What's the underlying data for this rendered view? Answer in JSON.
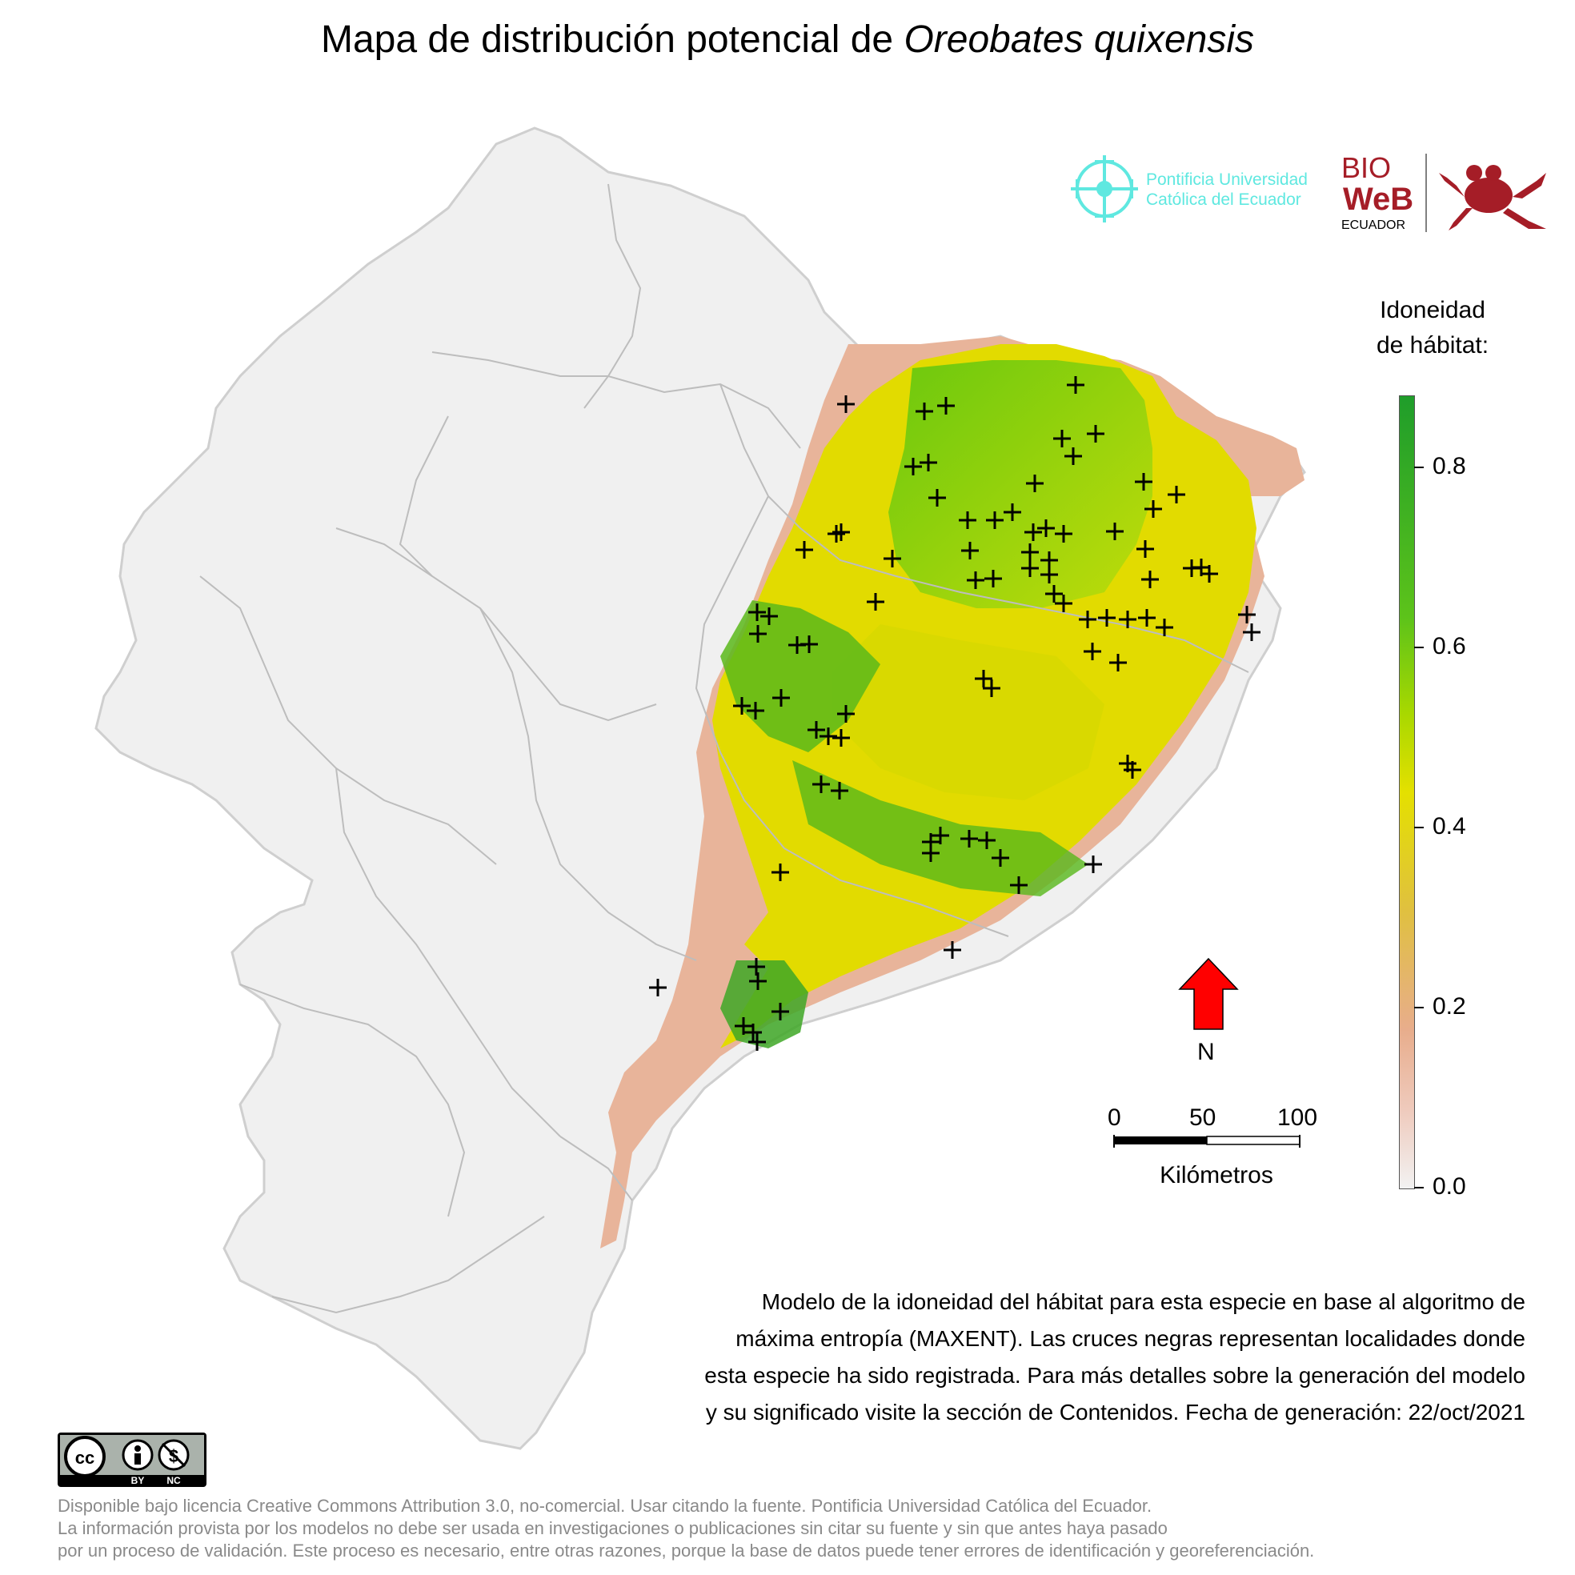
{
  "title": {
    "prefix": "Mapa de distribución potencial de",
    "species": "Oreobates quixensis"
  },
  "logos": {
    "puce_line1": "Pontificia Universidad",
    "puce_line2": "Católica del Ecuador",
    "bioweb_top": "BIO",
    "bioweb_mid": "WeB",
    "bioweb_bottom": "ECUADOR"
  },
  "legend": {
    "title_line1": "Idoneidad",
    "title_line2": "de hábitat:",
    "ticks": [
      "0.8",
      "0.6",
      "0.4",
      "0.2",
      "0.0"
    ],
    "tick_values": [
      0.8,
      0.6,
      0.4,
      0.2,
      0.0
    ],
    "max_value": 0.88,
    "colors": {
      "low": "#f2f2f2",
      "pink": "#e8ad8c",
      "yellow": "#e4e000",
      "lightgreen": "#a8d800",
      "green": "#1f9d2a"
    }
  },
  "north": {
    "label": "N",
    "color": "#ff0000"
  },
  "scale_bar": {
    "labels": [
      "0",
      "50",
      "100"
    ],
    "unit": "Kilómetros"
  },
  "description": {
    "line1": "Modelo de la idoneidad del hábitat para esta especie en base al algoritmo de",
    "line2": "máxima entropía (MAXENT). Las cruces negras representan localidades donde",
    "line3": "esta especie ha sido registrada. Para más detalles sobre la generación del modelo",
    "line4": "y su significado visite la sección de Contenidos. Fecha de generación: 22/oct/2021"
  },
  "license_badge": {
    "by": "BY",
    "nc": "NC",
    "cc": "cc"
  },
  "footer": {
    "line1": "Disponible bajo licencia Creative Commons Attribution 3.0, no-comercial. Usar citando la fuente. Pontificia Universidad Católica del Ecuador.",
    "line2": "La información provista por los modelos no debe ser usada en investigaciones o publicaciones sin citar su fuente y sin que antes haya pasado",
    "line3": "por un proceso de validación. Este proceso es necesario, entre otras razones, porque la base de datos puede tener errores de identificación y georeferenciación."
  }
}
